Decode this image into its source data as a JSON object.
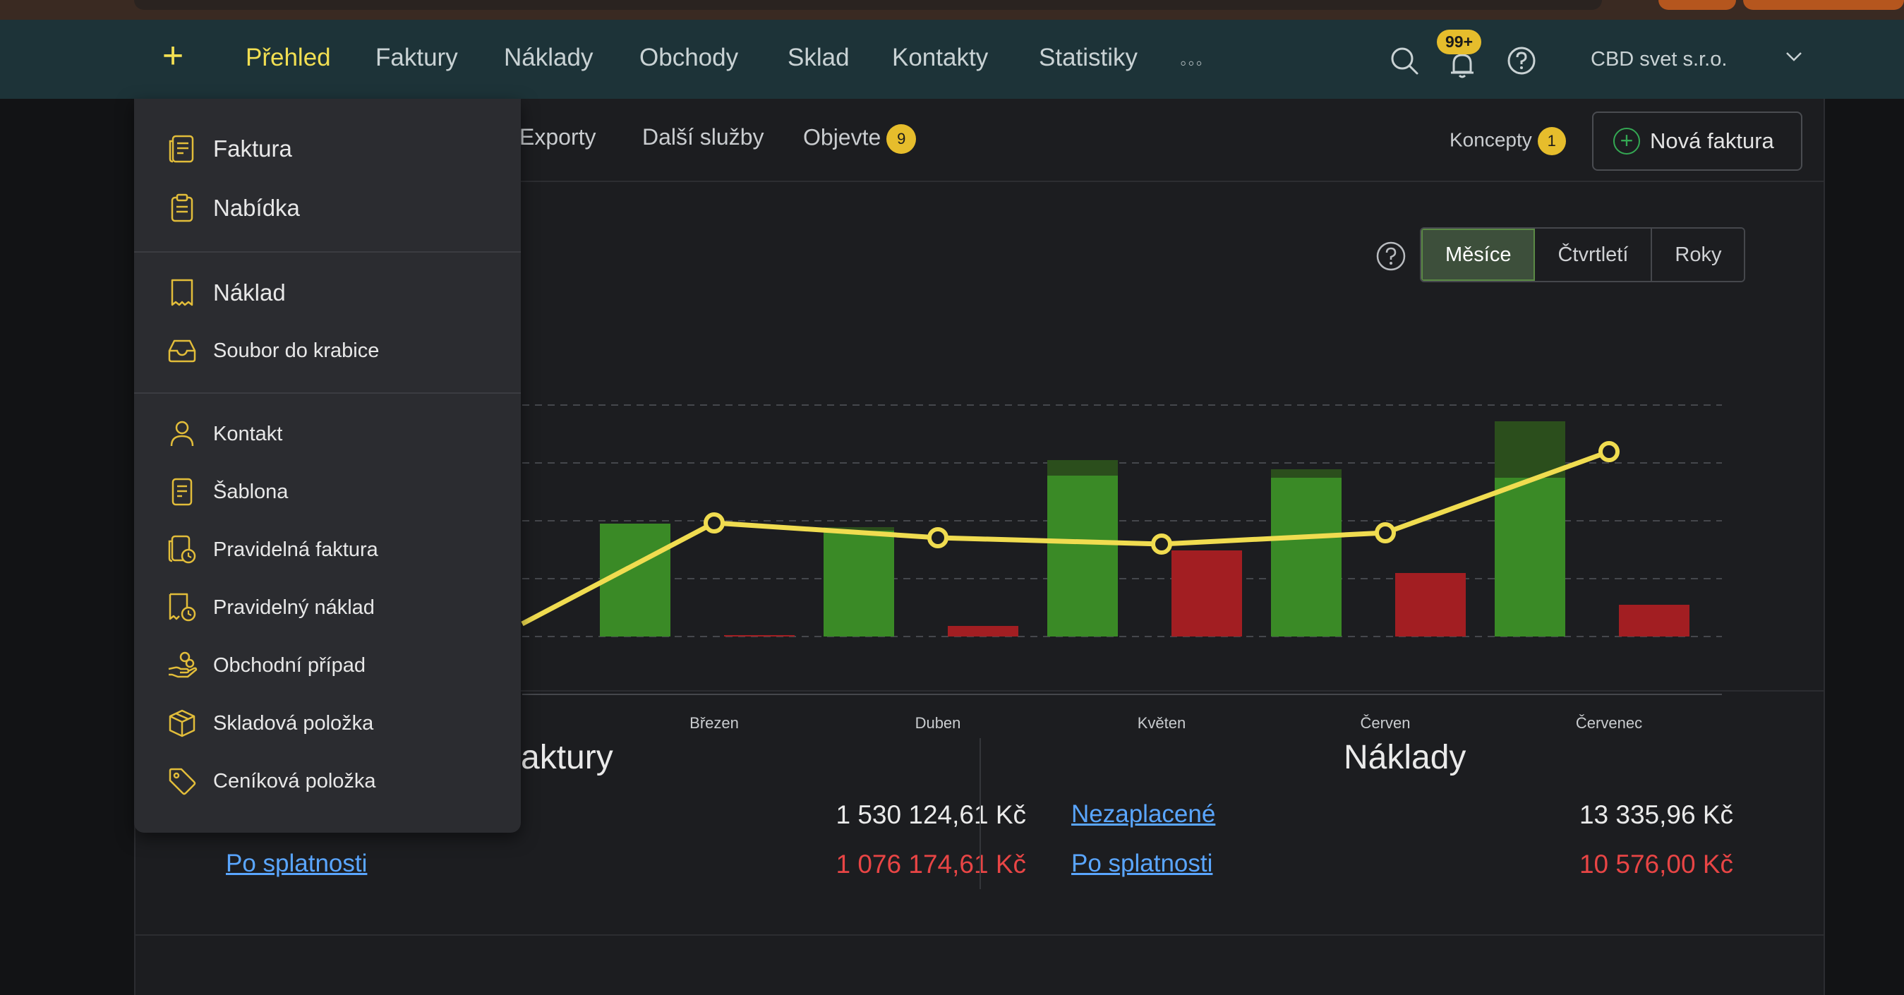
{
  "topnav": {
    "items": [
      "Přehled",
      "Faktury",
      "Náklady",
      "Obchody",
      "Sklad",
      "Kontakty",
      "Statistiky"
    ],
    "more": "◦◦◦",
    "notifications_badge": "99+",
    "company": "CBD svet s.r.o."
  },
  "subnav": {
    "exporty": "Exporty",
    "dalsi_sluzby": "Další služby",
    "objevte": "Objevte",
    "objevte_badge": "9",
    "koncepty": "Koncepty",
    "koncepty_badge": "1",
    "nova_faktura": "Nová faktura"
  },
  "period": {
    "options": [
      "Měsíce",
      "Čtvrtletí",
      "Roky"
    ],
    "selected": "Měsíce"
  },
  "chart_data": {
    "type": "bar",
    "categories": [
      "Březen",
      "Duben",
      "Květen",
      "Červen",
      "Červenec"
    ],
    "series": [
      {
        "values": [
          160,
          150,
          228,
          225,
          225
        ],
        "color": "#3a8a26"
      },
      {
        "values": [
          0,
          5,
          22,
          12,
          80
        ],
        "color": "#2b4e1c"
      },
      {
        "values": [
          2,
          15,
          122,
          90,
          45
        ],
        "color": "#a21e22"
      },
      {
        "values": [
          161,
          140,
          131,
          147,
          262
        ],
        "color": "#f0dc50"
      }
    ],
    "ylim": [
      0,
      330
    ],
    "grid": true
  },
  "summary": {
    "faktury": {
      "title": "aktury",
      "unpaid_value": "1 530 124,61 Kč",
      "overdue_label": "Po splatnosti",
      "overdue_value": "1 076 174,61 Kč"
    },
    "naklady": {
      "title": "Náklady",
      "unpaid_label": "Nezaplacené",
      "unpaid_value": "13 335,96 Kč",
      "overdue_label": "Po splatnosti",
      "overdue_value": "10 576,00 Kč"
    }
  },
  "dropdown": {
    "items": [
      {
        "label": "Faktura",
        "icon": "invoice-icon"
      },
      {
        "label": "Nabídka",
        "icon": "clipboard-icon"
      },
      {
        "label": "Náklad",
        "icon": "receipt-icon"
      },
      {
        "label": "Soubor do krabice",
        "icon": "inbox-icon"
      },
      {
        "label": "Kontakt",
        "icon": "person-icon"
      },
      {
        "label": "Šablona",
        "icon": "template-icon"
      },
      {
        "label": "Pravidelná faktura",
        "icon": "recurring-invoice-icon"
      },
      {
        "label": "Pravidelný náklad",
        "icon": "recurring-expense-icon"
      },
      {
        "label": "Obchodní případ",
        "icon": "hand-coins-icon"
      },
      {
        "label": "Skladová položka",
        "icon": "box-icon"
      },
      {
        "label": "Ceníková položka",
        "icon": "tag-icon"
      }
    ]
  }
}
